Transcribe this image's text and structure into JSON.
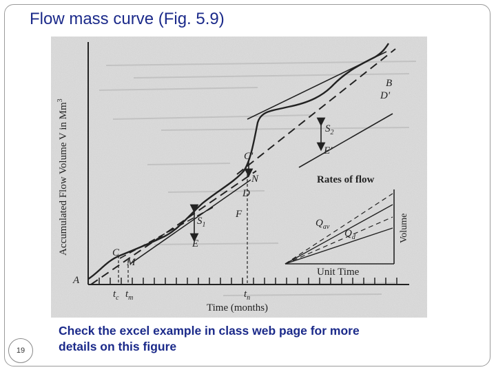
{
  "slide": {
    "title": "Flow mass curve (Fig. 5.9)",
    "page_number": "19",
    "caption": "Check the excel example in class web page for more details on this figure"
  },
  "figure": {
    "y_axis_label": "Accumulated Flow Volume V in Mm",
    "y_axis_superscript": "3",
    "x_axis_label": "Time (months)",
    "points": {
      "A": "A",
      "B": "B",
      "Dp": "D'",
      "C": "C",
      "M": "M",
      "E": "E",
      "F": "F",
      "D": "D",
      "N": "N",
      "Cp": "C'",
      "Ep": "E'"
    },
    "storage_1": "S",
    "storage_1_sub": "1",
    "storage_2": "S",
    "storage_2_sub": "2",
    "tick_tc": "t",
    "tick_tc_sub": "c",
    "tick_tm": "t",
    "tick_tm_sub": "m",
    "tick_tn": "t",
    "tick_tn_sub": "n",
    "inset": {
      "title": "Rates of flow",
      "q_av": "Q",
      "q_av_sub": "av",
      "q_d": "Q",
      "q_d_sub": "d",
      "volume_label": "Volume",
      "unit_time_label": "Unit Time"
    }
  }
}
